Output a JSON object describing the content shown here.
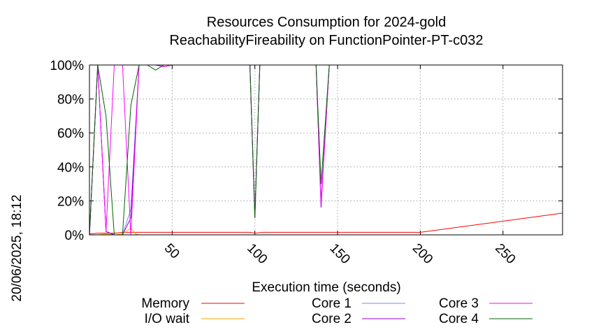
{
  "chart_data": {
    "type": "line",
    "title_line1": "Resources Consumption for 2024-gold",
    "title_line2": "ReachabilityFireability on FunctionPointer-PT-c032",
    "xlabel": "Execution time (seconds)",
    "ylabel": "",
    "timestamp": "20/06/2025, 18:12",
    "xlim": [
      0,
      286
    ],
    "ylim": [
      0,
      100
    ],
    "xticks": [
      50,
      100,
      150,
      200,
      250
    ],
    "yticks": [
      0,
      20,
      40,
      60,
      80,
      100
    ],
    "ytick_labels": [
      "0%",
      "20%",
      "40%",
      "60%",
      "80%",
      "100%"
    ],
    "grid": true,
    "legend_position": "bottom",
    "series": [
      {
        "name": "Memory",
        "color": "#ff0000",
        "x": [
          0,
          5,
          10,
          15,
          20,
          25,
          30,
          50,
          97,
          100,
          105,
          140,
          145,
          185,
          200,
          286
        ],
        "y": [
          0.5,
          1,
          1,
          1,
          1.5,
          1.5,
          1.5,
          1.5,
          1.5,
          1,
          1.5,
          1.5,
          1.5,
          1.5,
          1.5,
          12.8
        ]
      },
      {
        "name": "I/O wait",
        "color": "#ffa500",
        "x": [
          0,
          5,
          10,
          15,
          20,
          25,
          28,
          30,
          50,
          100,
          150,
          200,
          286
        ],
        "y": [
          0,
          0,
          0.5,
          0,
          0.5,
          4,
          0.5,
          0,
          0,
          0,
          0,
          0,
          0
        ]
      },
      {
        "name": "Core 1",
        "color": "#7f8fdf",
        "x": [
          0,
          5,
          10,
          15,
          20,
          25,
          30,
          35,
          40,
          45,
          50,
          97,
          100,
          103,
          137,
          140,
          145,
          286
        ],
        "y": [
          0,
          100,
          2,
          0,
          0,
          15,
          100,
          100,
          100,
          99,
          100,
          100,
          10,
          100,
          100,
          20,
          100,
          100
        ]
      },
      {
        "name": "Core 2",
        "color": "#9400d3",
        "x": [
          0,
          5,
          10,
          15,
          20,
          25,
          30,
          35,
          40,
          45,
          50,
          97,
          100,
          103,
          137,
          140,
          145,
          286
        ],
        "y": [
          0,
          100,
          2,
          0,
          0,
          10,
          100,
          100,
          100,
          99,
          100,
          100,
          12,
          100,
          100,
          16,
          100,
          100
        ]
      },
      {
        "name": "Core 3",
        "color": "#ff00ff",
        "x": [
          0,
          5,
          10,
          15,
          20,
          25,
          30,
          35,
          40,
          45,
          50,
          97,
          100,
          103,
          137,
          140,
          145,
          286
        ],
        "y": [
          0,
          100,
          2,
          100,
          100,
          0,
          100,
          100,
          100,
          99,
          100,
          100,
          10,
          100,
          100,
          18,
          100,
          100
        ]
      },
      {
        "name": "Core 4",
        "color": "#006400",
        "x": [
          0,
          5,
          10,
          15,
          20,
          25,
          30,
          35,
          40,
          45,
          50,
          97,
          100,
          103,
          137,
          140,
          145,
          286
        ],
        "y": [
          0,
          100,
          70,
          0,
          0,
          76,
          100,
          100,
          97,
          100,
          100,
          100,
          10,
          100,
          100,
          30,
          100,
          100
        ]
      }
    ]
  }
}
